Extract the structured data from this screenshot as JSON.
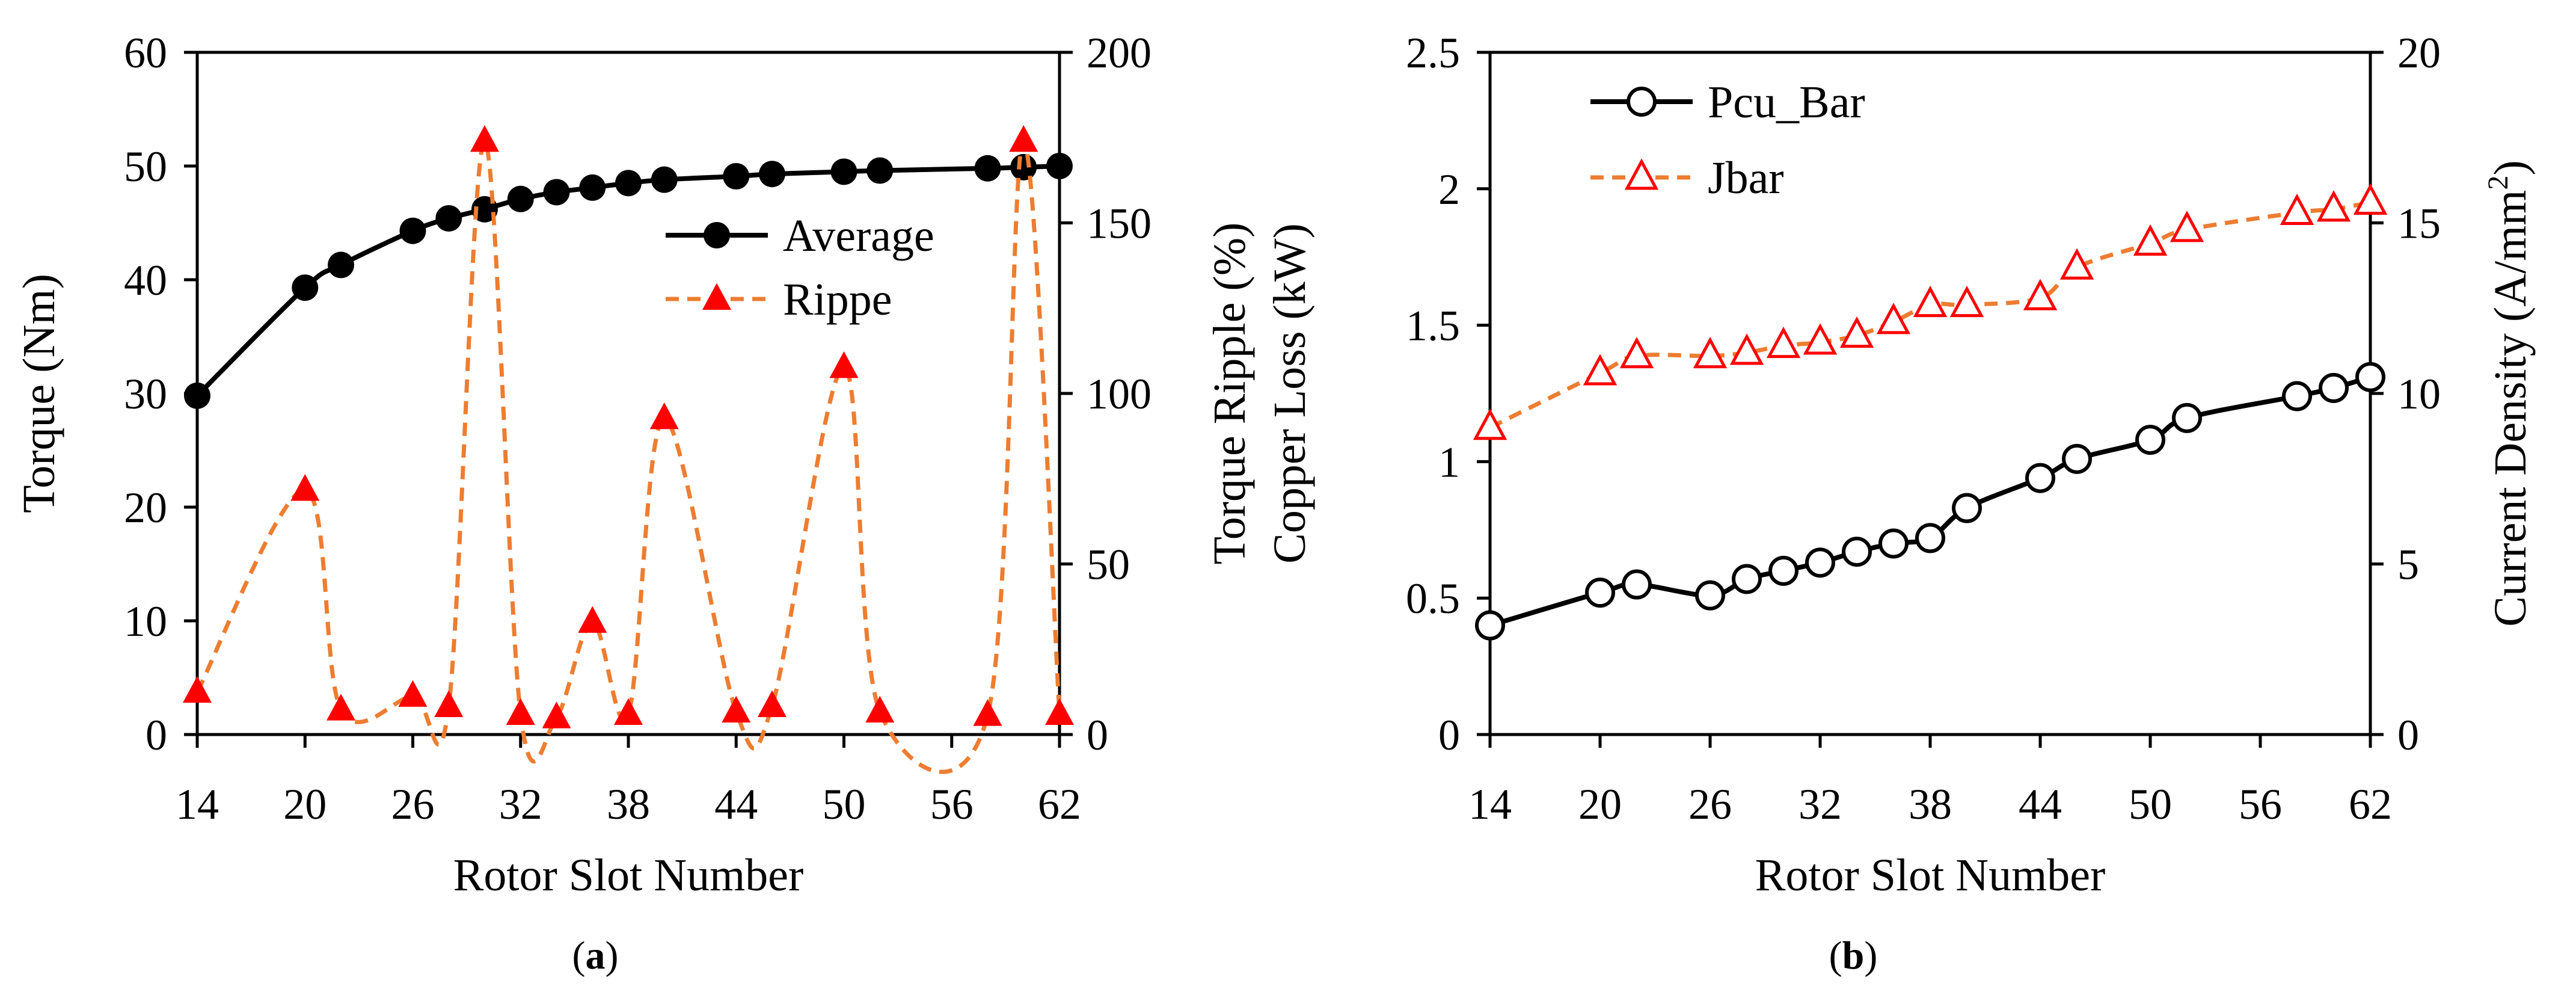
{
  "colors": {
    "axis": "#000000",
    "average": "#000000",
    "ripple_line": "#ED7D31",
    "ripple_marker": "#FF0000",
    "pcu": "#000000",
    "jbar_line": "#ED7D31",
    "jbar_marker": "#FF0000"
  },
  "chart_data": [
    {
      "id": "a",
      "type": "line",
      "caption": "(a)",
      "xlabel": "Rotor Slot Number",
      "ylabel": "Torque (Nm)",
      "y2label": "Torque Ripple (%)",
      "xlim": [
        14,
        62
      ],
      "xticks": [
        14,
        20,
        26,
        32,
        38,
        44,
        50,
        56,
        62
      ],
      "ylim": [
        0,
        60
      ],
      "yticks": [
        0,
        10,
        20,
        30,
        40,
        50,
        60
      ],
      "y2lim": [
        0,
        200
      ],
      "y2ticks": [
        0,
        50,
        100,
        150,
        200
      ],
      "grid": false,
      "legend_position": "upper-right",
      "x": [
        14,
        20,
        22,
        26,
        28,
        30,
        32,
        34,
        36,
        38,
        40,
        44,
        46,
        50,
        52,
        58,
        60,
        62
      ],
      "series": [
        {
          "name": "Average",
          "axis": "left",
          "style": "solid",
          "marker": "filled-circle",
          "values": [
            29.8,
            39.3,
            41.3,
            44.3,
            45.4,
            46.2,
            47.1,
            47.7,
            48.1,
            48.5,
            48.8,
            49.1,
            49.3,
            49.5,
            49.6,
            49.8,
            49.9,
            50.0
          ]
        },
        {
          "name": "Rippe",
          "axis": "right",
          "style": "dashed-smooth",
          "marker": "filled-triangle",
          "values": [
            12.5,
            71.7,
            7.3,
            11.3,
            8.3,
            174,
            6,
            5,
            33,
            6,
            92.7,
            6.7,
            8.3,
            107.7,
            6.7,
            5.7,
            174,
            6
          ]
        }
      ]
    },
    {
      "id": "b",
      "type": "line",
      "caption": "(b)",
      "xlabel": "Rotor Slot Number",
      "ylabel": "Copper Loss (kW)",
      "y2label": "Current Density (A/mm²)",
      "y2label_parts": [
        "Current Density (A/mm",
        "2",
        ")"
      ],
      "xlim": [
        14,
        62
      ],
      "xticks": [
        14,
        20,
        26,
        32,
        38,
        44,
        50,
        56,
        62
      ],
      "ylim": [
        0,
        2.5
      ],
      "yticks": [
        0,
        0.5,
        1,
        1.5,
        2,
        2.5
      ],
      "y2lim": [
        0,
        20
      ],
      "y2ticks": [
        0,
        5,
        10,
        15,
        20
      ],
      "grid": false,
      "legend_position": "upper-left",
      "x": [
        14,
        20,
        22,
        26,
        28,
        30,
        32,
        34,
        36,
        38,
        40,
        44,
        46,
        50,
        52,
        58,
        60,
        62
      ],
      "series": [
        {
          "name": "Pcu_Bar",
          "axis": "left",
          "style": "solid",
          "marker": "open-circle",
          "values": [
            0.4,
            0.52,
            0.55,
            0.51,
            0.57,
            0.6,
            0.63,
            0.67,
            0.7,
            0.72,
            0.83,
            0.94,
            1.01,
            1.08,
            1.16,
            1.24,
            1.27,
            1.31
          ]
        },
        {
          "name": "Jbar",
          "axis": "right",
          "style": "dashed",
          "marker": "open-triangle",
          "values": [
            9.0,
            10.6,
            11.1,
            11.1,
            11.2,
            11.4,
            11.5,
            11.7,
            12.1,
            12.6,
            12.6,
            12.8,
            13.7,
            14.4,
            14.8,
            15.3,
            15.4,
            15.6
          ]
        }
      ]
    }
  ]
}
